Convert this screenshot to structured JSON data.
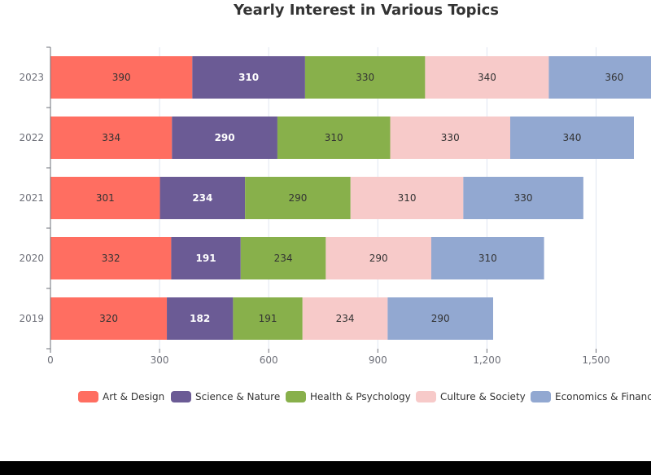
{
  "chart_data": {
    "type": "bar",
    "orientation": "horizontal",
    "stacked": true,
    "title": "Yearly Interest in Various Topics",
    "xlabel": "",
    "ylabel": "",
    "categories": [
      "2019",
      "2020",
      "2021",
      "2022",
      "2023"
    ],
    "xlim": [
      0,
      1650
    ],
    "xticks": [
      0,
      300,
      600,
      900,
      1200,
      1500
    ],
    "xtick_labels": [
      "0",
      "300",
      "600",
      "900",
      "1,200",
      "1,500"
    ],
    "grid": "vertical",
    "legend_position": "bottom",
    "series": [
      {
        "name": "Art & Design",
        "color": "#ff6e61",
        "label_color": "#333333",
        "values": [
          320,
          332,
          301,
          334,
          390
        ]
      },
      {
        "name": "Science & Nature",
        "color": "#6b5b95",
        "label_color": "#ffffff",
        "values": [
          182,
          191,
          234,
          290,
          310
        ]
      },
      {
        "name": "Health & Psychology",
        "color": "#88b04b",
        "label_color": "#333333",
        "values": [
          191,
          234,
          290,
          310,
          330
        ]
      },
      {
        "name": "Culture & Society",
        "color": "#f7cac9",
        "label_color": "#333333",
        "values": [
          234,
          290,
          310,
          330,
          340
        ]
      },
      {
        "name": "Economics & Finance",
        "color": "#92a8d1",
        "label_color": "#333333",
        "values": [
          290,
          310,
          330,
          340,
          360
        ]
      }
    ]
  }
}
